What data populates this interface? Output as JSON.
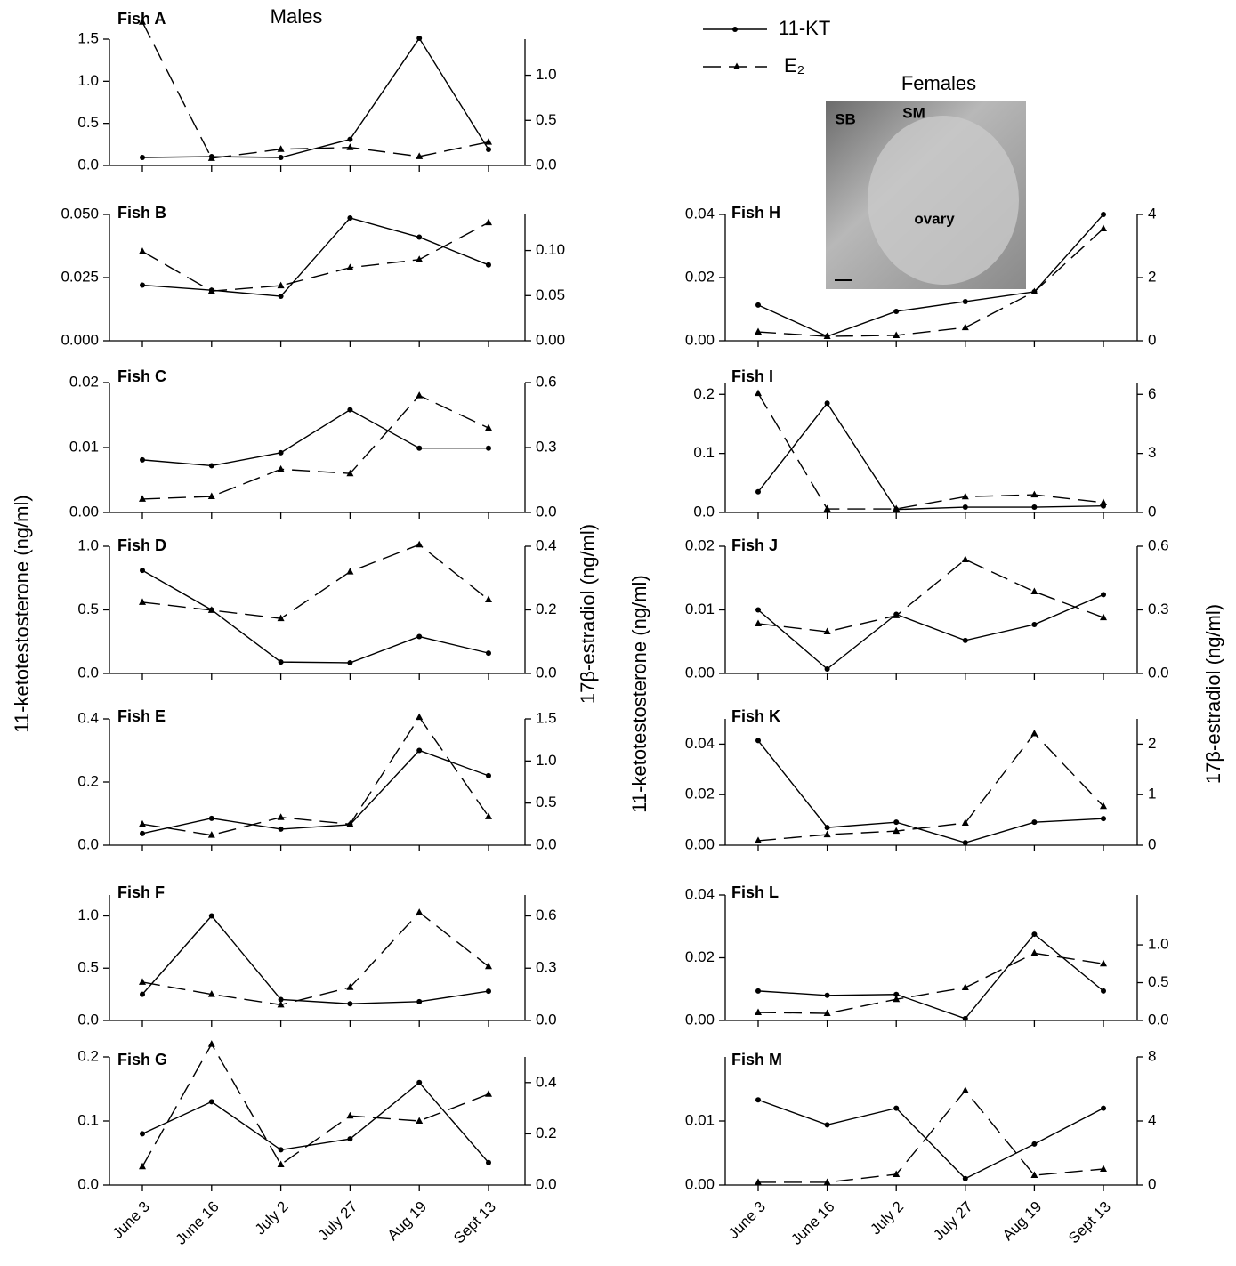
{
  "groups": [
    "Males",
    "Females"
  ],
  "axis_labels": {
    "y": "11-ketotestosterone (ng/ml)",
    "y2": "17β-estradiol (ng/ml)"
  },
  "photo_labels": [
    "SB",
    "SM",
    "ovary"
  ],
  "chart_data": [
    {
      "type": "line",
      "title": "Fish A",
      "ylim": [
        0,
        1.5
      ],
      "yticks": [
        {
          "value": 0,
          "label": "0.0"
        },
        0.5,
        {
          "value": 1,
          "label": "1.0"
        },
        1.5
      ],
      "y2lim": [
        0,
        1.4
      ],
      "y2ticks": [
        {
          "value": 0,
          "label": "0.0"
        },
        0.5,
        {
          "value": 1,
          "label": "1.0"
        }
      ],
      "series": [
        {
          "name": "11-KT",
          "color": "#000000",
          "style": "solid",
          "marker": "circle",
          "values": [
            0.095,
            0.105,
            0.095,
            0.31,
            1.51,
            0.19
          ]
        },
        {
          "name": "E₂",
          "color": "#000000",
          "style": "dashed",
          "marker": "triangle",
          "axis": "y2",
          "values": [
            1.59,
            0.08,
            0.18,
            0.2,
            0.1,
            0.26
          ]
        }
      ]
    },
    {
      "type": "line",
      "title": "Fish B",
      "ylim": [
        0,
        0.05
      ],
      "yticks": [
        {
          "value": 0,
          "label": "0.000"
        },
        0.025,
        {
          "value": 0.05,
          "label": "0.050"
        }
      ],
      "y2lim": [
        0,
        0.14
      ],
      "y2ticks": [
        {
          "value": 0,
          "label": "0.00"
        },
        0.05,
        {
          "value": 0.1,
          "label": "0.10"
        }
      ],
      "series": [
        {
          "color": "#000000",
          "style": "solid",
          "marker": "circle",
          "values": [
            0.022,
            0.02,
            0.0176,
            0.0486,
            0.041,
            0.03
          ]
        },
        {
          "color": "#000000",
          "style": "dashed",
          "marker": "triangle",
          "axis": "y2",
          "values": [
            0.099,
            0.055,
            0.061,
            0.081,
            0.09,
            0.131
          ]
        }
      ]
    },
    {
      "type": "line",
      "title": "Fish C",
      "ylim": [
        0,
        0.02
      ],
      "yticks": [
        {
          "value": 0,
          "label": "0.00"
        },
        0.01,
        0.02
      ],
      "y2lim": [
        0,
        0.6
      ],
      "y2ticks": [
        {
          "value": 0,
          "label": "0.0"
        },
        0.3,
        0.6
      ],
      "series": [
        {
          "color": "#000000",
          "style": "solid",
          "marker": "circle",
          "values": [
            0.0081,
            0.0072,
            0.0092,
            0.0158,
            0.0099,
            0.0099
          ]
        },
        {
          "color": "#000000",
          "style": "dashed",
          "marker": "triangle",
          "axis": "y2",
          "values": [
            0.062,
            0.074,
            0.2,
            0.18,
            0.54,
            0.39
          ]
        }
      ]
    },
    {
      "type": "line",
      "title": "Fish D",
      "ylim": [
        0,
        1
      ],
      "yticks": [
        {
          "value": 0,
          "label": "0.0"
        },
        0.5,
        {
          "value": 1,
          "label": "1.0"
        }
      ],
      "y2lim": [
        0,
        0.4
      ],
      "y2ticks": [
        {
          "value": 0,
          "label": "0.0"
        },
        0.2,
        0.4
      ],
      "series": [
        {
          "color": "#000000",
          "style": "solid",
          "marker": "circle",
          "values": [
            0.81,
            0.5,
            0.09,
            0.084,
            0.29,
            0.16
          ]
        },
        {
          "color": "#000000",
          "style": "dashed",
          "marker": "triangle",
          "axis": "y2",
          "values": [
            0.224,
            0.199,
            0.173,
            0.32,
            0.405,
            0.232
          ]
        }
      ]
    },
    {
      "type": "line",
      "title": "Fish E",
      "ylim": [
        0,
        0.4
      ],
      "yticks": [
        {
          "value": 0,
          "label": "0.0"
        },
        0.2,
        0.4
      ],
      "y2lim": [
        0,
        1.5
      ],
      "y2ticks": [
        {
          "value": 0,
          "label": "0.0"
        },
        0.5,
        {
          "value": 1,
          "label": "1.0"
        },
        1.5
      ],
      "series": [
        {
          "color": "#000000",
          "style": "solid",
          "marker": "circle",
          "values": [
            0.037,
            0.085,
            0.051,
            0.065,
            0.3,
            0.22
          ]
        },
        {
          "color": "#000000",
          "style": "dashed",
          "marker": "triangle",
          "axis": "y2",
          "values": [
            0.25,
            0.12,
            0.33,
            0.25,
            1.52,
            0.34
          ]
        }
      ]
    },
    {
      "type": "line",
      "title": "Fish F",
      "ylim": [
        0,
        1.2
      ],
      "yticks": [
        {
          "value": 0,
          "label": "0.0"
        },
        0.5,
        {
          "value": 1,
          "label": "1.0"
        }
      ],
      "y2lim": [
        0,
        0.72
      ],
      "y2ticks": [
        {
          "value": 0,
          "label": "0.0"
        },
        0.3,
        0.6
      ],
      "series": [
        {
          "color": "#000000",
          "style": "solid",
          "marker": "circle",
          "values": [
            0.25,
            1,
            0.2,
            0.16,
            0.18,
            0.28
          ]
        },
        {
          "color": "#000000",
          "style": "dashed",
          "marker": "triangle",
          "axis": "y2",
          "values": [
            0.22,
            0.15,
            0.09,
            0.19,
            0.62,
            0.31
          ]
        }
      ]
    },
    {
      "type": "line",
      "title": "Fish G",
      "categories": [
        "June 3",
        "June 16",
        "July 2",
        "July 27",
        "Aug 19",
        "Sept 13"
      ],
      "ylim": [
        0,
        0.2
      ],
      "yticks": [
        {
          "value": 0,
          "label": "0.0"
        },
        0.1,
        0.2
      ],
      "y2lim": [
        0,
        0.5
      ],
      "y2ticks": [
        {
          "value": 0,
          "label": "0.0"
        },
        0.2,
        0.4
      ],
      "series": [
        {
          "color": "#000000",
          "style": "solid",
          "marker": "circle",
          "values": [
            0.08,
            0.13,
            0.055,
            0.072,
            0.16,
            0.035
          ]
        },
        {
          "color": "#000000",
          "style": "dashed",
          "marker": "triangle",
          "axis": "y2",
          "values": [
            0.072,
            0.55,
            0.08,
            0.27,
            0.25,
            0.355
          ]
        }
      ]
    },
    {
      "type": "line",
      "title": "Fish H",
      "ylim": [
        0,
        0.04
      ],
      "yticks": [
        {
          "value": 0,
          "label": "0.00"
        },
        0.02,
        0.04
      ],
      "y2lim": [
        0,
        4
      ],
      "y2ticks": [
        0,
        2,
        4
      ],
      "series": [
        {
          "color": "#000000",
          "style": "solid",
          "marker": "circle",
          "values": [
            0.0113,
            0.0014,
            0.0093,
            0.0124,
            0.0155,
            0.04
          ]
        },
        {
          "color": "#000000",
          "style": "dashed",
          "marker": "triangle",
          "axis": "y2",
          "values": [
            0.28,
            0.14,
            0.17,
            0.42,
            1.55,
            3.55
          ]
        }
      ]
    },
    {
      "type": "line",
      "title": "Fish I",
      "ylim": [
        0,
        0.22
      ],
      "yticks": [
        {
          "value": 0,
          "label": "0.0"
        },
        0.1,
        0.2
      ],
      "y2lim": [
        0,
        6.6
      ],
      "y2ticks": [
        0,
        3,
        6
      ],
      "series": [
        {
          "color": "#000000",
          "style": "solid",
          "marker": "circle",
          "values": [
            0.035,
            0.185,
            0.005,
            0.009,
            0.009,
            0.011
          ]
        },
        {
          "color": "#000000",
          "style": "dashed",
          "marker": "triangle",
          "axis": "y2",
          "values": [
            6.05,
            0.18,
            0.18,
            0.8,
            0.9,
            0.5
          ]
        }
      ]
    },
    {
      "type": "line",
      "title": "Fish J",
      "ylim": [
        0,
        0.02
      ],
      "yticks": [
        {
          "value": 0,
          "label": "0.00"
        },
        0.01,
        0.02
      ],
      "y2lim": [
        0,
        0.6
      ],
      "y2ticks": [
        {
          "value": 0,
          "label": "0.0"
        },
        0.3,
        0.6
      ],
      "series": [
        {
          "color": "#000000",
          "style": "solid",
          "marker": "circle",
          "values": [
            0.01,
            0.0007,
            0.0093,
            0.0052,
            0.0077,
            0.0124
          ]
        },
        {
          "color": "#000000",
          "style": "dashed",
          "marker": "triangle",
          "axis": "y2",
          "values": [
            0.235,
            0.197,
            0.273,
            0.537,
            0.386,
            0.264
          ]
        }
      ]
    },
    {
      "type": "line",
      "title": "Fish K",
      "ylim": [
        0,
        0.05
      ],
      "yticks": [
        {
          "value": 0,
          "label": "0.00"
        },
        0.02,
        0.04
      ],
      "y2lim": [
        0,
        2.5
      ],
      "y2ticks": [
        0,
        1,
        2
      ],
      "series": [
        {
          "color": "#000000",
          "style": "solid",
          "marker": "circle",
          "values": [
            0.0414,
            0.007,
            0.0091,
            0.001,
            0.0091,
            0.0105
          ]
        },
        {
          "color": "#000000",
          "style": "dashed",
          "marker": "triangle",
          "axis": "y2",
          "values": [
            0.09,
            0.21,
            0.28,
            0.44,
            2.21,
            0.77
          ]
        }
      ]
    },
    {
      "type": "line",
      "title": "Fish L",
      "ylim": [
        0,
        0.04
      ],
      "yticks": [
        {
          "value": 0,
          "label": "0.00"
        },
        0.02,
        0.04
      ],
      "y2lim": [
        0,
        1.66
      ],
      "y2ticks": [
        {
          "value": 0,
          "label": "0.0"
        },
        0.5,
        {
          "value": 1,
          "label": "1.0"
        }
      ],
      "series": [
        {
          "color": "#000000",
          "style": "solid",
          "marker": "circle",
          "values": [
            0.0094,
            0.008,
            0.0083,
            0.0006,
            0.0275,
            0.0094
          ]
        },
        {
          "color": "#000000",
          "style": "dashed",
          "marker": "triangle",
          "axis": "y2",
          "values": [
            0.106,
            0.094,
            0.28,
            0.435,
            0.89,
            0.75
          ]
        }
      ]
    },
    {
      "type": "line",
      "title": "Fish M",
      "categories": [
        "June 3",
        "June 16",
        "July 2",
        "July 27",
        "Aug 19",
        "Sept 13"
      ],
      "ylim": [
        0,
        0.02
      ],
      "yticks": [
        {
          "value": 0,
          "label": "0.00"
        },
        0.01
      ],
      "y2lim": [
        0,
        8
      ],
      "y2ticks": [
        0,
        4,
        8
      ],
      "series": [
        {
          "color": "#000000",
          "style": "solid",
          "marker": "circle",
          "values": [
            0.0133,
            0.0094,
            0.012,
            0.001,
            0.0064,
            0.012
          ]
        },
        {
          "color": "#000000",
          "style": "dashed",
          "marker": "triangle",
          "axis": "y2",
          "values": [
            0.17,
            0.17,
            0.67,
            5.9,
            0.61,
            1.0
          ]
        }
      ]
    }
  ]
}
